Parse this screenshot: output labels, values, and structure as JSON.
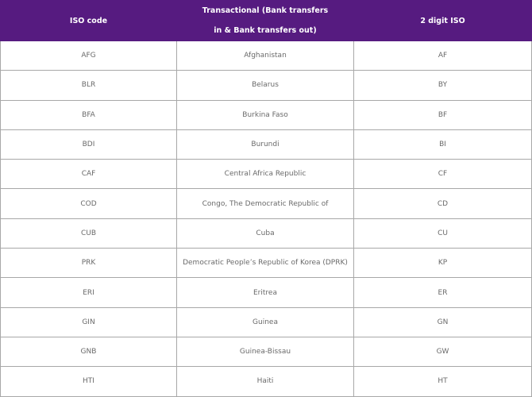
{
  "table": {
    "header": [
      "ISO code",
      "Transactional (Bank transfers in & Bank transfers out)",
      "2 digit ISO"
    ],
    "rows": [
      [
        "AFG",
        "Afghanistan",
        "AF"
      ],
      [
        "BLR",
        "Belarus",
        "BY"
      ],
      [
        "BFA",
        "Burkina Faso",
        "BF"
      ],
      [
        "BDI",
        "Burundi",
        "BI"
      ],
      [
        "CAF",
        "Central Africa Republic",
        "CF"
      ],
      [
        "COD",
        "Congo, The Democratic Republic of",
        "CD"
      ],
      [
        "CUB",
        "Cuba",
        "CU"
      ],
      [
        "PRK",
        "Democratic People’s Republic of Korea (DPRK)",
        "KP"
      ],
      [
        "ERI",
        "Eritrea",
        "ER"
      ],
      [
        "GIN",
        "Guinea",
        "GN"
      ],
      [
        "GNB",
        "Guinea-Bissau",
        "GW"
      ],
      [
        "HTI",
        "Haiti",
        "HT"
      ]
    ]
  }
}
